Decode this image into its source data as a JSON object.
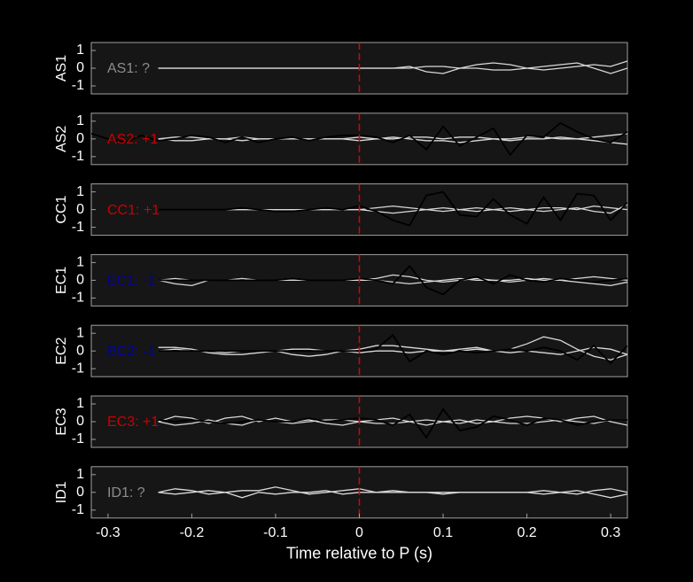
{
  "chart_data": [
    {
      "type": "line",
      "ylabel": "AS1",
      "annotation": "AS1: ?",
      "annotation_color": "#8c8c8c",
      "vline": 0,
      "vline_color": "#e00000",
      "xlim": [
        -0.32,
        0.32
      ],
      "ylim": [
        -1.45,
        1.45
      ],
      "yticks": [
        1,
        0,
        -1
      ],
      "x": [
        -0.32,
        -0.3,
        -0.28,
        -0.26,
        -0.24,
        -0.22,
        -0.2,
        -0.18,
        -0.16,
        -0.14,
        -0.12,
        -0.1,
        -0.08,
        -0.06,
        -0.04,
        -0.02,
        0,
        0.02,
        0.04,
        0.06,
        0.08,
        0.1,
        0.12,
        0.14,
        0.16,
        0.18,
        0.2,
        0.22,
        0.24,
        0.26,
        0.28,
        0.3,
        0.32
      ],
      "series": [
        {
          "color": "#d9d9d9",
          "values": [
            null,
            null,
            null,
            null,
            0,
            0,
            0,
            0,
            0,
            0,
            0,
            0,
            0,
            0,
            0,
            0,
            0,
            0,
            0,
            0.1,
            -0.2,
            -0.3,
            0,
            0.2,
            0.3,
            0.2,
            0,
            -0.1,
            0,
            0.1,
            0.2,
            0.1,
            0.4
          ]
        },
        {
          "color": "#d9d9d9",
          "values": [
            null,
            null,
            null,
            null,
            0,
            0,
            0,
            0,
            0,
            0,
            0,
            0,
            0,
            0,
            0,
            0,
            0,
            0,
            0,
            0,
            0.1,
            0.1,
            0,
            0,
            -0.1,
            -0.1,
            0,
            0.1,
            0.2,
            0.3,
            0,
            -0.3,
            0
          ]
        }
      ]
    },
    {
      "type": "line",
      "ylabel": "AS2",
      "annotation": "AS2: +1",
      "annotation_color": "#cc0000",
      "vline": 0,
      "vline_color": "#e00000",
      "xlim": [
        -0.32,
        0.32
      ],
      "ylim": [
        -1.45,
        1.45
      ],
      "yticks": [
        1,
        0,
        -1
      ],
      "x": [
        -0.32,
        -0.3,
        -0.28,
        -0.26,
        -0.24,
        -0.22,
        -0.2,
        -0.18,
        -0.16,
        -0.14,
        -0.12,
        -0.1,
        -0.08,
        -0.06,
        -0.04,
        -0.02,
        0,
        0.02,
        0.04,
        0.06,
        0.08,
        0.1,
        0.12,
        0.14,
        0.16,
        0.18,
        0.2,
        0.22,
        0.24,
        0.26,
        0.28,
        0.3,
        0.32
      ],
      "series": [
        {
          "color": "#d9d9d9",
          "values": [
            null,
            null,
            null,
            null,
            0,
            0.1,
            0.1,
            0,
            0,
            0.1,
            0,
            0,
            0,
            0,
            0,
            0,
            0.1,
            0,
            0.1,
            0,
            -0.1,
            -0.1,
            -0.2,
            -0.1,
            0,
            0,
            0.1,
            0.1,
            0,
            0,
            0.1,
            0.2,
            0.3
          ]
        },
        {
          "color": "#d9d9d9",
          "values": [
            null,
            null,
            null,
            null,
            0,
            -0.1,
            -0.1,
            0,
            0,
            -0.1,
            0,
            0,
            0,
            0,
            0,
            0,
            -0.1,
            0,
            0,
            0.1,
            0.1,
            0,
            0.1,
            0.1,
            0,
            -0.1,
            0,
            0,
            0.1,
            0,
            -0.1,
            -0.2,
            -0.3
          ]
        },
        {
          "color": "#000000",
          "values": [
            0.3,
            0,
            -0.2,
            0.2,
            -0.1,
            0,
            0.2,
            0.1,
            -0.2,
            0.1,
            -0.2,
            0,
            0.1,
            -0.1,
            0.1,
            0.2,
            0.2,
            0.1,
            -0.2,
            0.2,
            -0.6,
            0.7,
            -0.4,
            0.1,
            0.6,
            -0.9,
            0.2,
            0.1,
            0.9,
            0.4,
            0,
            -0.2,
            0.4
          ]
        }
      ]
    },
    {
      "type": "line",
      "ylabel": "CC1",
      "annotation": "CC1: +1",
      "annotation_color": "#cc0000",
      "vline": 0,
      "vline_color": "#e00000",
      "xlim": [
        -0.32,
        0.32
      ],
      "ylim": [
        -1.45,
        1.45
      ],
      "yticks": [
        1,
        0,
        -1
      ],
      "x": [
        -0.32,
        -0.3,
        -0.28,
        -0.26,
        -0.24,
        -0.22,
        -0.2,
        -0.18,
        -0.16,
        -0.14,
        -0.12,
        -0.1,
        -0.08,
        -0.06,
        -0.04,
        -0.02,
        0,
        0.02,
        0.04,
        0.06,
        0.08,
        0.1,
        0.12,
        0.14,
        0.16,
        0.18,
        0.2,
        0.22,
        0.24,
        0.26,
        0.28,
        0.3,
        0.32
      ],
      "series": [
        {
          "color": "#d9d9d9",
          "values": [
            null,
            null,
            null,
            null,
            0,
            0,
            0,
            0,
            0,
            0,
            0,
            0,
            0,
            0,
            0,
            0,
            0,
            0.1,
            0.2,
            0.1,
            0,
            -0.1,
            0,
            0.1,
            0,
            -0.1,
            0,
            0.1,
            0.1,
            0,
            0.2,
            0.1,
            0
          ]
        },
        {
          "color": "#d9d9d9",
          "values": [
            null,
            null,
            null,
            null,
            0,
            0,
            0,
            0,
            0,
            0,
            0,
            0,
            0,
            0,
            0,
            0,
            0,
            -0.1,
            -0.2,
            -0.1,
            0,
            0.1,
            0,
            -0.1,
            0,
            0.1,
            0,
            -0.1,
            0,
            0.1,
            -0.1,
            -0.2,
            0.3
          ]
        },
        {
          "color": "#000000",
          "values": [
            null,
            null,
            null,
            null,
            0,
            0,
            0,
            0,
            0,
            0.1,
            0,
            -0.1,
            -0.1,
            0,
            0.1,
            0,
            0.2,
            -0.1,
            -0.6,
            -0.9,
            0.8,
            1.0,
            -0.3,
            -0.4,
            0.6,
            -0.3,
            -0.8,
            0.7,
            -0.6,
            0.9,
            0.8,
            -0.6,
            0.4
          ]
        }
      ]
    },
    {
      "type": "line",
      "ylabel": "EC1",
      "annotation": "EC1: -1",
      "annotation_color": "#0000aa",
      "vline": 0,
      "vline_color": "#e00000",
      "xlim": [
        -0.32,
        0.32
      ],
      "ylim": [
        -1.45,
        1.45
      ],
      "yticks": [
        1,
        0,
        -1
      ],
      "x": [
        -0.32,
        -0.3,
        -0.28,
        -0.26,
        -0.24,
        -0.22,
        -0.2,
        -0.18,
        -0.16,
        -0.14,
        -0.12,
        -0.1,
        -0.08,
        -0.06,
        -0.04,
        -0.02,
        0,
        0.02,
        0.04,
        0.06,
        0.08,
        0.1,
        0.12,
        0.14,
        0.16,
        0.18,
        0.2,
        0.22,
        0.24,
        0.26,
        0.28,
        0.3,
        0.32
      ],
      "series": [
        {
          "color": "#d9d9d9",
          "values": [
            null,
            null,
            null,
            null,
            0,
            -0.2,
            -0.3,
            0,
            0,
            0.1,
            0,
            0,
            0,
            0,
            0,
            0,
            0,
            0.1,
            0.3,
            0.2,
            0,
            -0.1,
            0,
            0.1,
            0,
            -0.1,
            0,
            0.1,
            0,
            -0.1,
            -0.2,
            -0.3,
            -0.1
          ]
        },
        {
          "color": "#d9d9d9",
          "values": [
            null,
            null,
            null,
            null,
            0,
            0.1,
            0,
            0,
            0,
            0,
            0,
            0,
            0,
            0,
            0,
            0,
            0,
            0,
            -0.1,
            -0.2,
            -0.1,
            0,
            0.1,
            0,
            0,
            0,
            0.1,
            0,
            0,
            0.1,
            0.2,
            0.1,
            0
          ]
        },
        {
          "color": "#000000",
          "values": [
            null,
            null,
            null,
            null,
            0,
            0,
            0,
            0,
            0,
            0,
            0,
            0,
            0.1,
            0,
            0,
            0,
            0.1,
            0,
            -0.2,
            0.8,
            -0.4,
            -0.8,
            0,
            0.2,
            -0.2,
            0.3,
            0,
            -0.1,
            0.1,
            0,
            -0.1,
            0,
            0.1
          ]
        }
      ]
    },
    {
      "type": "line",
      "ylabel": "EC2",
      "annotation": "EC2: -1",
      "annotation_color": "#0000aa",
      "vline": 0,
      "vline_color": "#e00000",
      "xlim": [
        -0.32,
        0.32
      ],
      "ylim": [
        -1.45,
        1.45
      ],
      "yticks": [
        1,
        0,
        -1
      ],
      "x": [
        -0.32,
        -0.3,
        -0.28,
        -0.26,
        -0.24,
        -0.22,
        -0.2,
        -0.18,
        -0.16,
        -0.14,
        -0.12,
        -0.1,
        -0.08,
        -0.06,
        -0.04,
        -0.02,
        0,
        0.02,
        0.04,
        0.06,
        0.08,
        0.1,
        0.12,
        0.14,
        0.16,
        0.18,
        0.2,
        0.22,
        0.24,
        0.26,
        0.28,
        0.3,
        0.32
      ],
      "series": [
        {
          "color": "#d9d9d9",
          "values": [
            null,
            null,
            null,
            null,
            0.2,
            0.2,
            0.1,
            -0.1,
            -0.2,
            -0.2,
            -0.1,
            0,
            -0.2,
            -0.3,
            -0.2,
            0,
            0.1,
            0.3,
            0.3,
            0.2,
            0.1,
            0,
            0.1,
            0.2,
            0,
            0.1,
            0.4,
            0.8,
            0.6,
            0.1,
            -0.3,
            -0.5,
            -0.2
          ]
        },
        {
          "color": "#d9d9d9",
          "values": [
            null,
            null,
            null,
            null,
            0,
            0.1,
            0,
            0,
            -0.1,
            0,
            0,
            0,
            0.1,
            0.1,
            0,
            0,
            -0.1,
            0,
            0,
            -0.1,
            0,
            0,
            0,
            0.1,
            0,
            -0.1,
            0,
            -0.1,
            -0.2,
            0,
            0.2,
            0.1,
            -0.2
          ]
        },
        {
          "color": "#000000",
          "values": [
            null,
            null,
            null,
            null,
            0,
            0,
            0,
            0,
            0,
            0,
            0,
            0,
            0,
            0,
            0,
            0,
            0,
            0.1,
            0.9,
            -0.6,
            0,
            -0.2,
            0,
            -0.1,
            0,
            0.1,
            0,
            0.2,
            0,
            -0.5,
            0.3,
            -0.7,
            0.3
          ]
        }
      ]
    },
    {
      "type": "line",
      "ylabel": "EC3",
      "annotation": "EC3: +1",
      "annotation_color": "#cc0000",
      "vline": 0,
      "vline_color": "#e00000",
      "xlim": [
        -0.32,
        0.32
      ],
      "ylim": [
        -1.45,
        1.45
      ],
      "yticks": [
        1,
        0,
        -1
      ],
      "x": [
        -0.32,
        -0.3,
        -0.28,
        -0.26,
        -0.24,
        -0.22,
        -0.2,
        -0.18,
        -0.16,
        -0.14,
        -0.12,
        -0.1,
        -0.08,
        -0.06,
        -0.04,
        -0.02,
        0,
        0.02,
        0.04,
        0.06,
        0.08,
        0.1,
        0.12,
        0.14,
        0.16,
        0.18,
        0.2,
        0.22,
        0.24,
        0.26,
        0.28,
        0.3,
        0.32
      ],
      "series": [
        {
          "color": "#d9d9d9",
          "values": [
            null,
            null,
            null,
            null,
            0,
            0.3,
            0.2,
            -0.1,
            0.2,
            0.3,
            0,
            0.2,
            0,
            0.1,
            -0.1,
            -0.2,
            0,
            0.1,
            0.2,
            0,
            -0.2,
            0,
            0.1,
            -0.1,
            0,
            0.2,
            0.3,
            0.2,
            0,
            0.2,
            0.3,
            0,
            -0.2
          ]
        },
        {
          "color": "#d9d9d9",
          "values": [
            null,
            null,
            null,
            null,
            0,
            -0.2,
            -0.1,
            0.1,
            -0.1,
            -0.2,
            0.1,
            0,
            -0.1,
            0,
            0.1,
            0.1,
            0,
            -0.1,
            -0.1,
            0,
            0.1,
            0,
            -0.1,
            0.1,
            0,
            -0.1,
            -0.1,
            0,
            0.1,
            0,
            -0.1,
            0.1,
            0.1
          ]
        },
        {
          "color": "#000000",
          "values": [
            null,
            null,
            null,
            null,
            0.1,
            0,
            0.1,
            0,
            -0.1,
            0,
            0.1,
            0,
            0,
            0.2,
            0,
            0.1,
            0.2,
            0.1,
            -0.2,
            0.4,
            -0.9,
            0.7,
            -0.5,
            -0.3,
            0.3,
            0.1,
            -0.2,
            0.2,
            0.1,
            -0.2,
            0,
            0.1,
            0.1
          ]
        }
      ]
    },
    {
      "type": "line",
      "ylabel": "ID1",
      "annotation": "ID1: ?",
      "annotation_color": "#8c8c8c",
      "vline": 0,
      "vline_color": "#e00000",
      "xlim": [
        -0.32,
        0.32
      ],
      "ylim": [
        -1.45,
        1.45
      ],
      "yticks": [
        1,
        0,
        -1
      ],
      "xlabel": "Time relative to P (s)",
      "xticks": [
        -0.3,
        -0.2,
        -0.1,
        0,
        0.1,
        0.2,
        0.3
      ],
      "x": [
        -0.32,
        -0.3,
        -0.28,
        -0.26,
        -0.24,
        -0.22,
        -0.2,
        -0.18,
        -0.16,
        -0.14,
        -0.12,
        -0.1,
        -0.08,
        -0.06,
        -0.04,
        -0.02,
        0,
        0.02,
        0.04,
        0.06,
        0.08,
        0.1,
        0.12,
        0.14,
        0.16,
        0.18,
        0.2,
        0.22,
        0.24,
        0.26,
        0.28,
        0.3,
        0.32
      ],
      "series": [
        {
          "color": "#d9d9d9",
          "values": [
            null,
            null,
            null,
            null,
            0,
            0.2,
            0.1,
            -0.1,
            0,
            0.1,
            0.1,
            0.3,
            0.1,
            -0.1,
            0,
            0.1,
            0.2,
            0,
            0,
            0,
            0,
            -0.1,
            0,
            0,
            0,
            0,
            0,
            0.1,
            0,
            -0.1,
            0.1,
            0.2,
            0
          ]
        },
        {
          "color": "#d9d9d9",
          "values": [
            null,
            null,
            null,
            null,
            0,
            -0.1,
            0,
            0.1,
            0,
            -0.3,
            0,
            -0.1,
            0,
            0,
            0.1,
            -0.1,
            0,
            0,
            0.1,
            0,
            0,
            0,
            0,
            0,
            0,
            0,
            0,
            -0.1,
            0,
            0.1,
            -0.1,
            -0.3,
            -0.1
          ]
        }
      ]
    }
  ]
}
